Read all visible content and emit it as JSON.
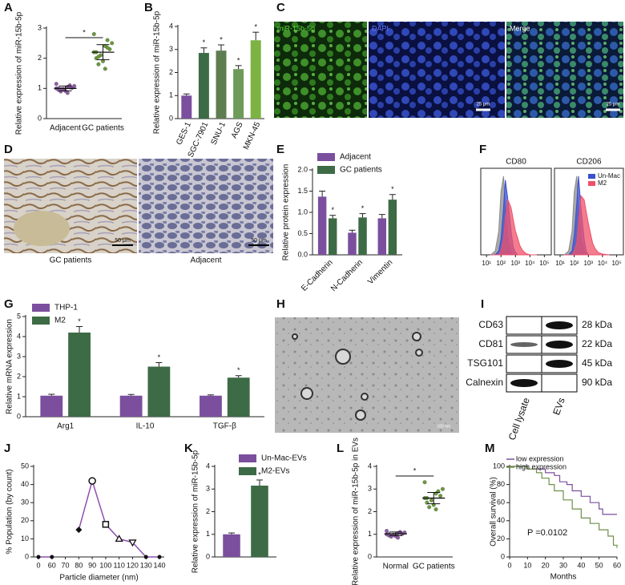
{
  "chart_data": [
    {
      "panel": "A",
      "type": "dot-plot",
      "ylabel": "Relative  expression of miR-15b-5p",
      "categories": [
        "Adjacent",
        "GC patients"
      ],
      "points": [
        [
          1.0,
          1.05,
          0.95,
          1.1,
          0.9,
          1.02,
          0.98,
          1.08,
          0.92,
          1.15,
          0.85,
          1.0,
          1.04,
          0.97
        ],
        [
          2.2,
          2.4,
          2.0,
          2.6,
          1.8,
          2.3,
          2.1,
          2.5,
          1.9,
          2.8,
          1.65,
          2.2,
          2.35,
          2.05
        ]
      ],
      "values": [
        1.0,
        2.2
      ],
      "errors": [
        0.08,
        0.25
      ],
      "colors": [
        "#8e5ea8",
        "#6a9a3a"
      ],
      "significance": "*",
      "ylim": [
        0,
        3
      ],
      "yticks": [
        0,
        1,
        2,
        3
      ]
    },
    {
      "panel": "B",
      "type": "bar",
      "ylabel": "Relative  expression of miR-15b-5p",
      "categories": [
        "GES-1",
        "SGC-7901",
        "SNU-1",
        "AGS",
        "MKN-45"
      ],
      "values": [
        1.0,
        2.85,
        2.95,
        2.15,
        3.4
      ],
      "errors": [
        0.07,
        0.22,
        0.25,
        0.15,
        0.35
      ],
      "colors": [
        "#7b4f9e",
        "#3d6b45",
        "#5e7d50",
        "#6e9a5a",
        "#7cb342"
      ],
      "significance": [
        null,
        "*",
        "*",
        "*",
        "*"
      ],
      "ylim": [
        0,
        4
      ],
      "yticks": [
        0,
        1,
        2,
        3,
        4
      ]
    },
    {
      "panel": "E",
      "type": "grouped-bar",
      "ylabel": "Relative protein expression",
      "categories": [
        "E-Cadherin",
        "N-Cadherin",
        "Vimentin"
      ],
      "series": [
        {
          "name": "Adjacent",
          "color": "#7b4f9e",
          "values": [
            1.37,
            0.52,
            0.86
          ],
          "errors": [
            0.13,
            0.06,
            0.09
          ]
        },
        {
          "name": "GC patients",
          "color": "#3d6b45",
          "values": [
            0.86,
            0.88,
            1.3
          ],
          "errors": [
            0.07,
            0.09,
            0.12
          ],
          "significance": [
            "*",
            "*",
            "*"
          ]
        }
      ],
      "ylim": [
        0,
        2
      ],
      "yticks": [
        {
          "value": 0,
          "label": "0.0"
        },
        {
          "value": 0.5,
          "label": "0.5"
        },
        {
          "value": 1,
          "label": "1.0"
        },
        {
          "value": 1.5,
          "label": "1.5"
        },
        {
          "value": 2,
          "label": "2.0"
        }
      ]
    },
    {
      "panel": "F",
      "type": "flow",
      "xscale": "log",
      "xlim": [
        4,
        300000
      ],
      "ylim": [
        0,
        110
      ],
      "xticks": [
        {
          "value": 10,
          "label": "10¹"
        },
        {
          "value": 100,
          "label": "10²"
        },
        {
          "value": 1000,
          "label": "10³"
        },
        {
          "value": 10000,
          "label": "10⁴"
        },
        {
          "value": 100000,
          "label": "10⁵"
        }
      ],
      "x": [
        20,
        40,
        70,
        100,
        150,
        200,
        300,
        500,
        700,
        1000,
        1500,
        2000,
        3000,
        5000,
        10000,
        30000
      ],
      "legend": [
        {
          "name": "Un-Mac",
          "color": "#3b4fd0"
        },
        {
          "name": "M2",
          "color": "#f0506a"
        }
      ],
      "subplots": [
        {
          "title": "CD80",
          "series": [
            {
              "color": "#8c8c8c",
              "values": [
                0,
                5,
                30,
                80,
                100,
                60,
                20,
                5,
                0,
                0,
                0,
                0,
                0,
                0,
                0,
                0
              ]
            },
            {
              "color": "#3b4fd0",
              "values": [
                0,
                0,
                5,
                20,
                60,
                95,
                70,
                30,
                10,
                3,
                0,
                0,
                0,
                0,
                0,
                0
              ]
            },
            {
              "color": "#f0506a",
              "values": [
                0,
                0,
                0,
                5,
                20,
                45,
                70,
                60,
                45,
                30,
                20,
                12,
                6,
                2,
                0,
                0
              ]
            }
          ]
        },
        {
          "title": "CD206",
          "series": [
            {
              "color": "#8c8c8c",
              "values": [
                0,
                5,
                30,
                80,
                100,
                60,
                20,
                5,
                0,
                0,
                0,
                0,
                0,
                0,
                0,
                0
              ]
            },
            {
              "color": "#3b4fd0",
              "values": [
                0,
                0,
                5,
                25,
                65,
                100,
                60,
                20,
                5,
                0,
                0,
                0,
                0,
                0,
                0,
                0
              ]
            },
            {
              "color": "#f0506a",
              "values": [
                0,
                0,
                0,
                5,
                15,
                40,
                75,
                70,
                55,
                40,
                25,
                15,
                8,
                3,
                1,
                0
              ]
            }
          ]
        }
      ]
    },
    {
      "panel": "G",
      "type": "grouped-bar",
      "ylabel": "Relative mRNA expression",
      "categories": [
        "Arg1",
        "IL-10",
        "TGF-β"
      ],
      "series": [
        {
          "name": "THP-1",
          "color": "#7b4f9e",
          "values": [
            1.05,
            1.05,
            1.05
          ],
          "errors": [
            0.07,
            0.06,
            0.04
          ]
        },
        {
          "name": "M2",
          "color": "#3d6b45",
          "values": [
            4.2,
            2.5,
            1.95
          ],
          "errors": [
            0.3,
            0.2,
            0.1
          ],
          "significance": [
            "*",
            "*",
            "*"
          ]
        }
      ],
      "ylim": [
        0,
        5
      ],
      "yticks": [
        0,
        1,
        2,
        3,
        4,
        5
      ]
    },
    {
      "panel": "J",
      "type": "line",
      "xlabel": "Particle diameter (nm)",
      "ylabel": "% Population (by count)",
      "color": "#8e4fb0",
      "categories": [
        "0",
        "60",
        "70",
        "80",
        "90",
        "100",
        "110",
        "120",
        "130",
        "140"
      ],
      "values": [
        0,
        0,
        null,
        15,
        42,
        18,
        10,
        8,
        0,
        0
      ],
      "ylim": [
        0,
        50
      ],
      "yticks": [
        0,
        10,
        20,
        30,
        40,
        50
      ]
    },
    {
      "panel": "K",
      "type": "grouped-bar",
      "ylabel": "Relative  expression of miR-15b-5p",
      "series": [
        {
          "name": "Un-Mac-EVs",
          "color": "#7b4f9e",
          "values": [
            1.0
          ],
          "errors": [
            0.06
          ]
        },
        {
          "name": "M2-EVs",
          "color": "#3d6b45",
          "values": [
            3.15
          ],
          "errors": [
            0.25
          ],
          "significance": [
            "*"
          ]
        }
      ],
      "ylim": [
        0,
        4
      ],
      "yticks": [
        0,
        1,
        2,
        3,
        4
      ]
    },
    {
      "panel": "L",
      "type": "dot-plot",
      "ylabel": "Relative expression of miR-15b-5p in EVs",
      "categories": [
        "Normal",
        "GC patients"
      ],
      "points": [
        [
          1.0,
          1.05,
          0.95,
          1.1,
          0.9,
          1.02,
          0.98,
          1.08,
          0.92,
          1.15,
          0.85,
          1.0
        ],
        [
          2.6,
          2.8,
          2.4,
          2.9,
          2.2,
          2.7,
          2.5,
          3.0,
          2.3,
          3.3,
          2.1,
          2.6
        ]
      ],
      "values": [
        1.02,
        2.6
      ],
      "errors": [
        0.08,
        0.25
      ],
      "colors": [
        "#8e5ea8",
        "#6a9a3a"
      ],
      "significance": "*",
      "ylim": [
        0,
        4
      ],
      "yticks": [
        0,
        1,
        2,
        3,
        4
      ]
    },
    {
      "panel": "M",
      "type": "km",
      "xlabel": "Months",
      "ylabel": "Overall survival (%)",
      "annotation": "P =0.0102",
      "series": [
        {
          "name": "low expression",
          "color": "#7b4f9e",
          "x": [
            0,
            5,
            10,
            15,
            20,
            25,
            28,
            32,
            35,
            40,
            45,
            50,
            52,
            60
          ],
          "values": [
            100,
            100,
            97,
            97,
            93,
            90,
            83,
            80,
            73,
            67,
            60,
            53,
            47,
            47
          ]
        },
        {
          "name": "high expression",
          "color": "#6e8f4a",
          "x": [
            0,
            5,
            10,
            15,
            18,
            22,
            25,
            30,
            35,
            40,
            45,
            50,
            55,
            58,
            60
          ],
          "values": [
            100,
            100,
            97,
            93,
            87,
            80,
            73,
            63,
            53,
            43,
            37,
            30,
            23,
            13,
            10
          ]
        }
      ],
      "xlim": [
        0,
        60
      ],
      "xticks": [
        0,
        10,
        20,
        30,
        40,
        50,
        60
      ],
      "ylim": [
        0,
        100
      ],
      "yticks": [
        0,
        20,
        40,
        60,
        80,
        100
      ]
    }
  ],
  "images": [
    {
      "panel": "C",
      "panels": [
        {
          "label": "miR-15b-5p"
        },
        {
          "label": "DAPI"
        },
        {
          "label": "Merge"
        }
      ],
      "scale": "25 μm"
    },
    {
      "panel": "D",
      "panels": [
        {
          "label": "GC patients"
        },
        {
          "label": "Adjacent"
        }
      ],
      "scale": "50 μm"
    },
    {
      "panel": "H",
      "scale": "100 nm"
    }
  ],
  "blot": {
    "panel": "I",
    "rows": [
      {
        "protein": "CD63",
        "size": "28 kDa"
      },
      {
        "protein": "CD81",
        "size": "22 kDa"
      },
      {
        "protein": "TSG101",
        "size": "45 kDa"
      },
      {
        "protein": "Calnexin",
        "size": "90 kDa"
      }
    ],
    "columns": [
      "Cell lysate",
      "EVs"
    ]
  }
}
